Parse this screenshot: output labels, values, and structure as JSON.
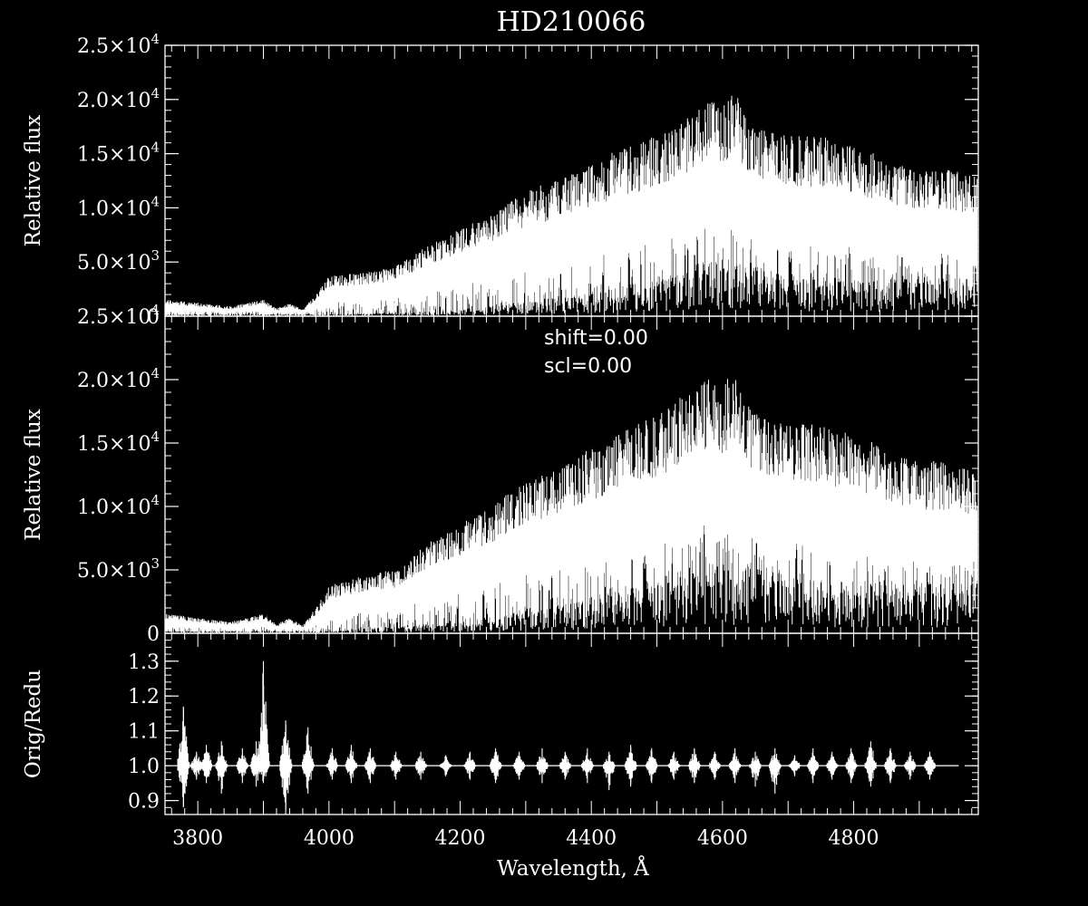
{
  "chart_data": {
    "type": "line",
    "title": "HD210066",
    "xlabel": "Wavelength, Å",
    "xlim": [
      3750,
      4990
    ],
    "xticks": [
      3800,
      4000,
      4200,
      4400,
      4600,
      4800
    ],
    "colors": {
      "background": "#000000",
      "foreground": "#ffffff"
    },
    "panels": [
      {
        "id": "top",
        "ylabel": "Relative flux",
        "ylim": [
          0,
          25000
        ],
        "yticks": [
          {
            "value": 0,
            "mant": "0",
            "exp": ""
          },
          {
            "value": 5000,
            "mant": "5.0×10",
            "exp": "3"
          },
          {
            "value": 10000,
            "mant": "1.0×10",
            "exp": "4"
          },
          {
            "value": 15000,
            "mant": "1.5×10",
            "exp": "4"
          },
          {
            "value": 20000,
            "mant": "2.0×10",
            "exp": "4"
          },
          {
            "value": 25000,
            "mant": "2.5×10",
            "exp": "4"
          }
        ],
        "series": [
          {
            "envelope_max": [
              [
                3760,
                1500
              ],
              [
                3800,
                1200
              ],
              [
                3850,
                900
              ],
              [
                3900,
                1500
              ],
              [
                3920,
                700
              ],
              [
                3940,
                1200
              ],
              [
                3960,
                600
              ],
              [
                3980,
                2000
              ],
              [
                4000,
                3700
              ],
              [
                4050,
                4000
              ],
              [
                4100,
                4500
              ],
              [
                4150,
                6500
              ],
              [
                4200,
                8000
              ],
              [
                4250,
                9500
              ],
              [
                4300,
                11500
              ],
              [
                4350,
                12500
              ],
              [
                4400,
                14000
              ],
              [
                4450,
                15500
              ],
              [
                4500,
                16500
              ],
              [
                4550,
                18500
              ],
              [
                4580,
                20000
              ],
              [
                4600,
                19500
              ],
              [
                4620,
                20500
              ],
              [
                4650,
                17500
              ],
              [
                4700,
                16500
              ],
              [
                4750,
                16500
              ],
              [
                4800,
                15500
              ],
              [
                4850,
                14500
              ],
              [
                4900,
                13500
              ],
              [
                4950,
                13500
              ],
              [
                4980,
                13000
              ]
            ],
            "envelope_min": [
              [
                3760,
                100
              ],
              [
                4000,
                100
              ],
              [
                4200,
                300
              ],
              [
                4400,
                1200
              ],
              [
                4500,
                2000
              ],
              [
                4600,
                3000
              ],
              [
                4700,
                2200
              ],
              [
                4800,
                2000
              ],
              [
                4980,
                2000
              ]
            ]
          }
        ]
      },
      {
        "id": "middle",
        "ylabel": "Relative flux",
        "ylim": [
          0,
          25000
        ],
        "yticks": [
          {
            "value": 0,
            "mant": "0",
            "exp": ""
          },
          {
            "value": 5000,
            "mant": "5.0×10",
            "exp": "3"
          },
          {
            "value": 10000,
            "mant": "1.0×10",
            "exp": "4"
          },
          {
            "value": 15000,
            "mant": "1.5×10",
            "exp": "4"
          },
          {
            "value": 20000,
            "mant": "2.0×10",
            "exp": "4"
          },
          {
            "value": 25000,
            "mant": "2.5×10",
            "exp": "4"
          }
        ],
        "annotations": [
          "shift=0.00",
          "scl=0.00"
        ],
        "series": [
          {
            "envelope_max": [
              [
                3760,
                1500
              ],
              [
                3800,
                1200
              ],
              [
                3850,
                900
              ],
              [
                3900,
                1500
              ],
              [
                3920,
                700
              ],
              [
                3940,
                1200
              ],
              [
                3960,
                600
              ],
              [
                3980,
                2000
              ],
              [
                4000,
                3700
              ],
              [
                4050,
                4500
              ],
              [
                4100,
                5000
              ],
              [
                4150,
                7000
              ],
              [
                4200,
                8500
              ],
              [
                4250,
                10000
              ],
              [
                4300,
                12000
              ],
              [
                4350,
                13000
              ],
              [
                4400,
                14500
              ],
              [
                4450,
                16000
              ],
              [
                4500,
                17000
              ],
              [
                4550,
                19000
              ],
              [
                4580,
                20000
              ],
              [
                4600,
                19500
              ],
              [
                4620,
                20500
              ],
              [
                4650,
                17500
              ],
              [
                4700,
                16500
              ],
              [
                4750,
                16500
              ],
              [
                4800,
                15500
              ],
              [
                4850,
                14500
              ],
              [
                4900,
                13500
              ],
              [
                4950,
                13500
              ],
              [
                4980,
                13000
              ]
            ],
            "envelope_min": [
              [
                3760,
                100
              ],
              [
                4000,
                100
              ],
              [
                4200,
                500
              ],
              [
                4400,
                1500
              ],
              [
                4500,
                2500
              ],
              [
                4600,
                3500
              ],
              [
                4700,
                2500
              ],
              [
                4800,
                2200
              ],
              [
                4980,
                2200
              ]
            ]
          }
        ]
      },
      {
        "id": "bottom",
        "ylabel": "Orig/Redu",
        "ylim": [
          0.86,
          1.38
        ],
        "yticks": [
          {
            "value": 0.9,
            "mant": "0.9",
            "exp": ""
          },
          {
            "value": 1.0,
            "mant": "1.0",
            "exp": ""
          },
          {
            "value": 1.1,
            "mant": "1.1",
            "exp": ""
          },
          {
            "value": 1.2,
            "mant": "1.2",
            "exp": ""
          },
          {
            "value": 1.3,
            "mant": "1.3",
            "exp": ""
          }
        ],
        "baseline": 1.0,
        "spikes": [
          {
            "x": 3778,
            "hi": 1.17,
            "lo": 0.88
          },
          {
            "x": 3798,
            "hi": 1.04,
            "lo": 0.96
          },
          {
            "x": 3813,
            "hi": 1.06,
            "lo": 0.95
          },
          {
            "x": 3836,
            "hi": 1.07,
            "lo": 0.92
          },
          {
            "x": 3868,
            "hi": 1.05,
            "lo": 0.95
          },
          {
            "x": 3889,
            "hi": 1.07,
            "lo": 0.94
          },
          {
            "x": 3900,
            "hi": 1.3,
            "lo": 0.95
          },
          {
            "x": 3934,
            "hi": 1.13,
            "lo": 0.86
          },
          {
            "x": 3968,
            "hi": 1.11,
            "lo": 0.92
          },
          {
            "x": 4005,
            "hi": 1.05,
            "lo": 0.96
          },
          {
            "x": 4034,
            "hi": 1.06,
            "lo": 0.95
          },
          {
            "x": 4063,
            "hi": 1.05,
            "lo": 0.95
          },
          {
            "x": 4102,
            "hi": 1.04,
            "lo": 0.96
          },
          {
            "x": 4140,
            "hi": 1.04,
            "lo": 0.96
          },
          {
            "x": 4178,
            "hi": 1.03,
            "lo": 0.97
          },
          {
            "x": 4215,
            "hi": 1.04,
            "lo": 0.96
          },
          {
            "x": 4254,
            "hi": 1.05,
            "lo": 0.95
          },
          {
            "x": 4290,
            "hi": 1.04,
            "lo": 0.96
          },
          {
            "x": 4325,
            "hi": 1.05,
            "lo": 0.95
          },
          {
            "x": 4360,
            "hi": 1.04,
            "lo": 0.96
          },
          {
            "x": 4394,
            "hi": 1.05,
            "lo": 0.95
          },
          {
            "x": 4427,
            "hi": 1.04,
            "lo": 0.93
          },
          {
            "x": 4460,
            "hi": 1.06,
            "lo": 0.94
          },
          {
            "x": 4492,
            "hi": 1.05,
            "lo": 0.95
          },
          {
            "x": 4526,
            "hi": 1.04,
            "lo": 0.96
          },
          {
            "x": 4557,
            "hi": 1.05,
            "lo": 0.95
          },
          {
            "x": 4588,
            "hi": 1.04,
            "lo": 0.96
          },
          {
            "x": 4619,
            "hi": 1.05,
            "lo": 0.95
          },
          {
            "x": 4650,
            "hi": 1.04,
            "lo": 0.94
          },
          {
            "x": 4680,
            "hi": 1.05,
            "lo": 0.92
          },
          {
            "x": 4710,
            "hi": 1.03,
            "lo": 0.97
          },
          {
            "x": 4738,
            "hi": 1.05,
            "lo": 0.95
          },
          {
            "x": 4767,
            "hi": 1.04,
            "lo": 0.96
          },
          {
            "x": 4796,
            "hi": 1.05,
            "lo": 0.95
          },
          {
            "x": 4826,
            "hi": 1.07,
            "lo": 0.94
          },
          {
            "x": 4856,
            "hi": 1.05,
            "lo": 0.95
          },
          {
            "x": 4886,
            "hi": 1.04,
            "lo": 0.96
          },
          {
            "x": 4916,
            "hi": 1.04,
            "lo": 0.96
          }
        ]
      }
    ]
  }
}
